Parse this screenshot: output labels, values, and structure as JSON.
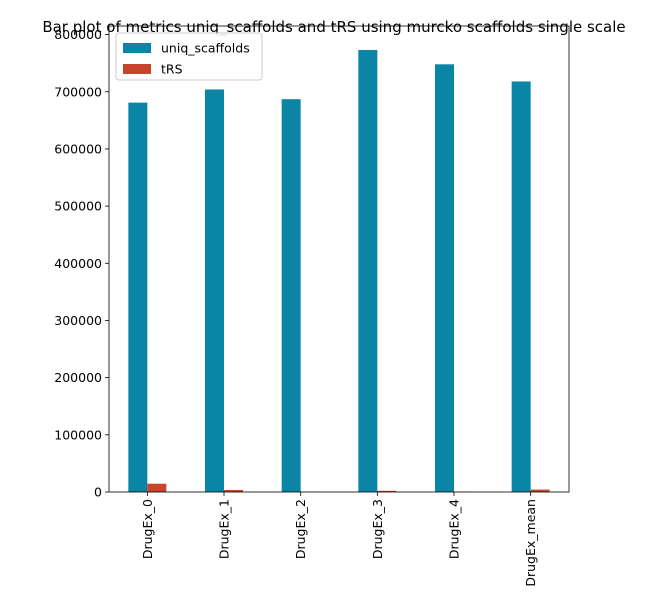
{
  "chart_data": {
    "type": "bar",
    "title": "Bar plot of metrics uniq_scaffolds and tRS using murcko scaffolds single scale",
    "xlabel": "",
    "ylabel": "",
    "categories": [
      "DrugEx_0",
      "DrugEx_1",
      "DrugEx_2",
      "DrugEx_3",
      "DrugEx_4",
      "DrugEx_mean"
    ],
    "series": [
      {
        "name": "uniq_scaffolds",
        "color": "#0b85a5",
        "values": [
          681000,
          704000,
          687000,
          773000,
          748000,
          718000
        ]
      },
      {
        "name": "tRS",
        "color": "#c9442c",
        "values": [
          14500,
          3500,
          600,
          2100,
          700,
          4200
        ]
      }
    ],
    "ylim": [
      0,
      815000
    ],
    "yticks": [
      0,
      100000,
      200000,
      300000,
      400000,
      500000,
      600000,
      700000,
      800000
    ],
    "ytick_labels": [
      "0",
      "100000",
      "200000",
      "300000",
      "400000",
      "500000",
      "600000",
      "700000",
      "800000"
    ],
    "grid": false,
    "legend": "top-left"
  }
}
